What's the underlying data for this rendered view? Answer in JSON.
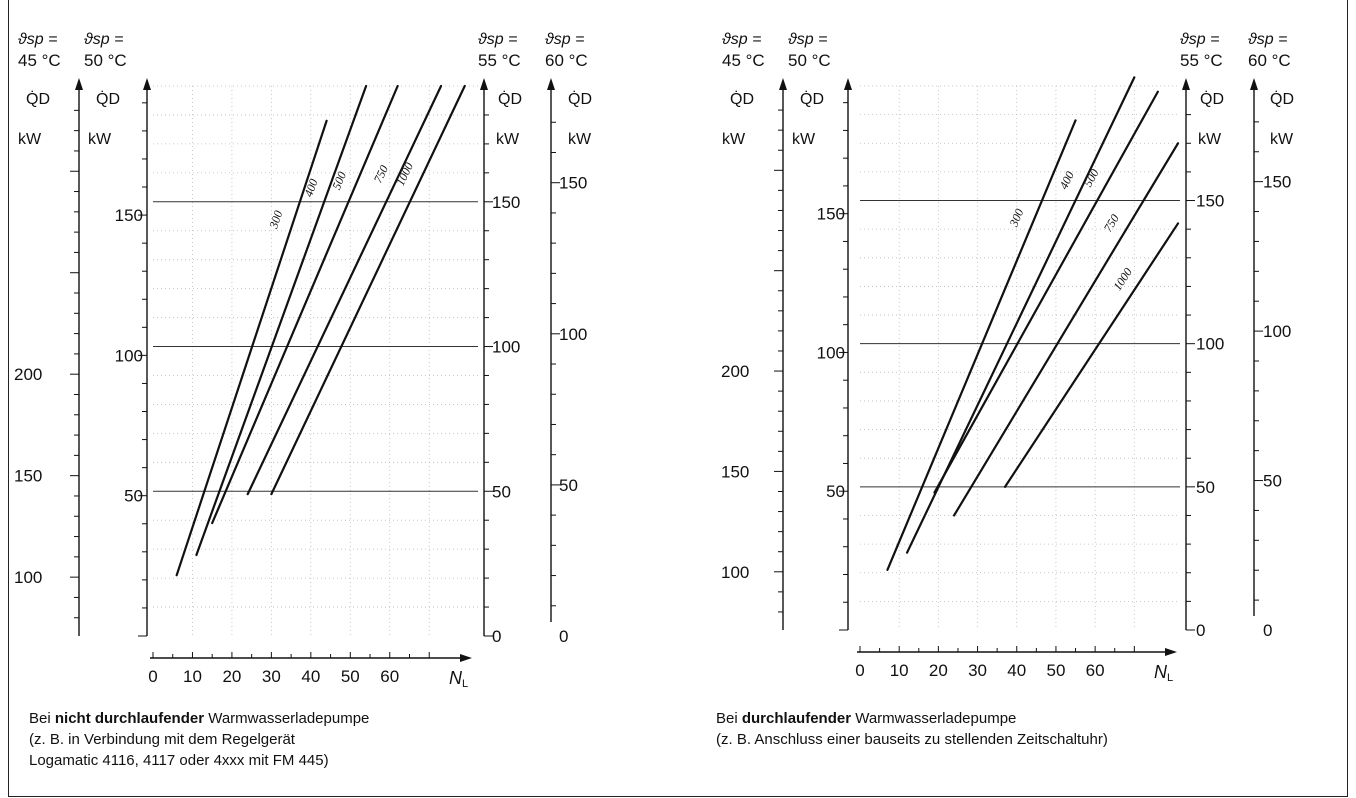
{
  "chart_data": [
    {
      "type": "line",
      "x_axis": {
        "label_main": "N",
        "label_sub": "L",
        "ticks": [
          0,
          10,
          20,
          30,
          40,
          50,
          60
        ],
        "range": [
          0,
          74
        ]
      },
      "y_axes": [
        {
          "temp_label_top": "ϑsp =",
          "temp_label_bottom": "45 °C",
          "quantity": "Q̇D",
          "unit": "kW",
          "ticks": [
            100,
            150,
            200
          ]
        },
        {
          "temp_label_top": "ϑsp =",
          "temp_label_bottom": "50 °C",
          "quantity": "Q̇D",
          "unit": "kW",
          "ticks": [
            50,
            100,
            150
          ]
        },
        {
          "temp_label_top": "ϑsp =",
          "temp_label_bottom": "55 °C",
          "quantity": "Q̇D",
          "unit": "kW",
          "ticks": [
            0,
            50,
            100,
            150
          ]
        },
        {
          "temp_label_top": "ϑsp =",
          "temp_label_bottom": "60 °C",
          "quantity": "Q̇D",
          "unit": "kW",
          "ticks": [
            0,
            50,
            100,
            150
          ]
        }
      ],
      "ref_axis_range": [
        0,
        190
      ],
      "series": [
        {
          "name": "300",
          "points": [
            [
              6,
              21
            ],
            [
              44,
              178
            ]
          ]
        },
        {
          "name": "400",
          "points": [
            [
              11,
              28
            ],
            [
              54,
              190
            ]
          ]
        },
        {
          "name": "500",
          "points": [
            [
              15,
              39
            ],
            [
              62,
              190
            ]
          ]
        },
        {
          "name": "750",
          "points": [
            [
              24,
              49
            ],
            [
              73,
              190
            ]
          ]
        },
        {
          "name": "1000",
          "points": [
            [
              30,
              49
            ],
            [
              79,
              190
            ]
          ]
        }
      ],
      "caption": {
        "line1_prefix": "Bei ",
        "line1_bold": "nicht durchlaufender",
        "line1_suffix": " Warmwasserladepumpe",
        "line2": "(z. B. in Verbindung mit dem Regelgerät",
        "line3": "Logamatic 4116, 4117 oder 4xxx mit FM 445)"
      }
    },
    {
      "type": "line",
      "x_axis": {
        "label_main": "N",
        "label_sub": "L",
        "ticks": [
          0,
          10,
          20,
          30,
          40,
          50,
          60
        ],
        "range": [
          0,
          74
        ]
      },
      "y_axes": [
        {
          "temp_label_top": "ϑsp =",
          "temp_label_bottom": "45 °C",
          "quantity": "Q̇D",
          "unit": "kW",
          "ticks": [
            100,
            150,
            200
          ]
        },
        {
          "temp_label_top": "ϑsp =",
          "temp_label_bottom": "50 °C",
          "quantity": "Q̇D",
          "unit": "kW",
          "ticks": [
            50,
            100,
            150
          ]
        },
        {
          "temp_label_top": "ϑsp =",
          "temp_label_bottom": "55 °C",
          "quantity": "Q̇D",
          "unit": "kW",
          "ticks": [
            0,
            50,
            100,
            150
          ]
        },
        {
          "temp_label_top": "ϑsp =",
          "temp_label_bottom": "60 °C",
          "quantity": "Q̇D",
          "unit": "kW",
          "ticks": [
            0,
            50,
            100,
            150
          ]
        }
      ],
      "ref_axis_range": [
        0,
        190
      ],
      "series": [
        {
          "name": "300",
          "points": [
            [
              7,
              21
            ],
            [
              55,
              178
            ]
          ]
        },
        {
          "name": "400",
          "points": [
            [
              12,
              27
            ],
            [
              70,
              193
            ]
          ]
        },
        {
          "name": "500",
          "points": [
            [
              19,
              48
            ],
            [
              76,
              188
            ]
          ]
        },
        {
          "name": "750",
          "points": [
            [
              24,
              40
            ],
            [
              90,
              170
            ]
          ]
        },
        {
          "name": "1000",
          "points": [
            [
              37,
              50
            ],
            [
              90,
              142
            ]
          ]
        }
      ],
      "caption": {
        "line1_prefix": "Bei ",
        "line1_bold": "durchlaufender",
        "line1_suffix": " Warmwasserladepumpe",
        "line2": "(z. B. Anschluss einer bauseits zu stellenden Zeitschaltuhr)"
      }
    }
  ]
}
